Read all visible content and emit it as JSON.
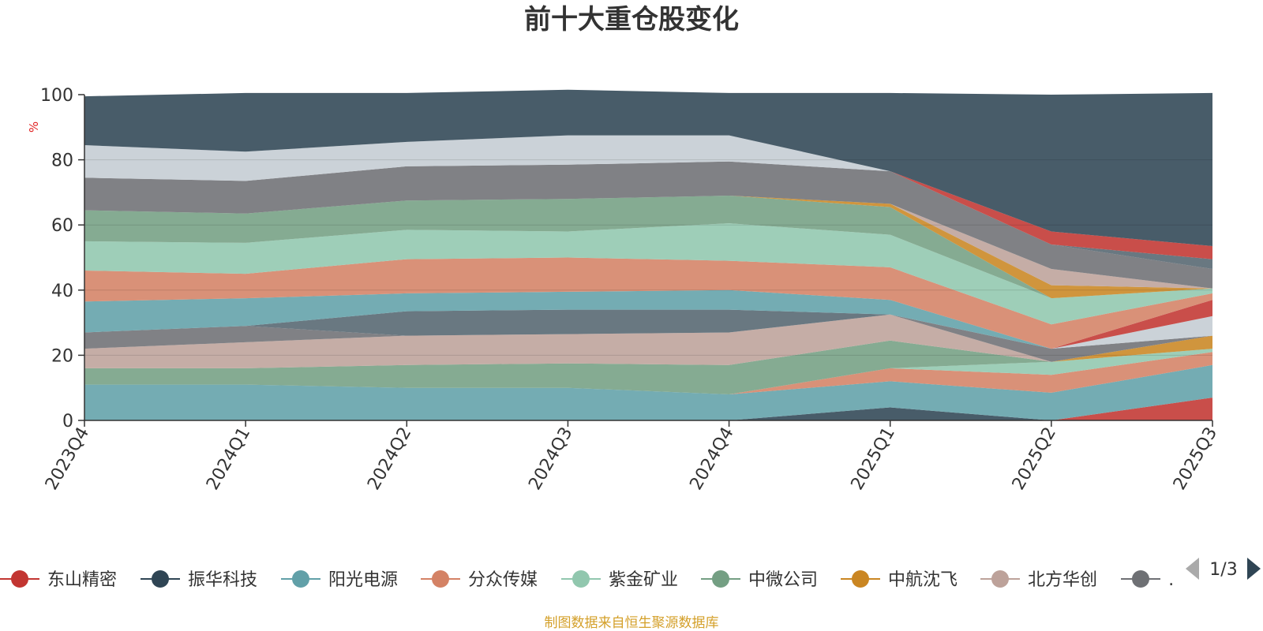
{
  "chart_data": {
    "type": "area",
    "stacked": true,
    "title": "前十大重仓股变化",
    "ylabel": "%",
    "ylim": [
      0,
      100
    ],
    "yticks": [
      0,
      20,
      40,
      60,
      80,
      100
    ],
    "grid": true,
    "categories": [
      "2023Q4",
      "2024Q1",
      "2024Q2",
      "2024Q3",
      "2024Q4",
      "2025Q1",
      "2025Q2",
      "2025Q3"
    ],
    "legend_position": "bottom",
    "legend": {
      "visible": [
        "东山精密",
        "振华科技",
        "阳光电源",
        "分众传媒",
        "紫金矿业",
        "中微公司",
        "中航沈飞",
        "北方华创",
        "…"
      ],
      "page": "1/3"
    },
    "series": [
      {
        "name": "东山精密",
        "color": "#c23531",
        "values": [
          0,
          0,
          0,
          0,
          0,
          0,
          0,
          7
        ]
      },
      {
        "name": "振华科技",
        "color": "#2f4554",
        "values": [
          0,
          0,
          0,
          0,
          0,
          4,
          0,
          0
        ]
      },
      {
        "name": "阳光电源",
        "color": "#61a0a8",
        "values": [
          11,
          11,
          10,
          10,
          8,
          8,
          8.5,
          10
        ]
      },
      {
        "name": "分众传媒",
        "color": "#d48265",
        "values": [
          0,
          0,
          0,
          0,
          0,
          4,
          5.5,
          4
        ]
      },
      {
        "name": "紫金矿业",
        "color": "#91c7ae",
        "values": [
          0,
          0,
          0,
          0,
          0,
          0,
          4,
          1
        ]
      },
      {
        "name": "中微公司",
        "color": "#749f83",
        "values": [
          5,
          5,
          7,
          7.5,
          9,
          8.5,
          0,
          0
        ]
      },
      {
        "name": "中航沈飞",
        "color": "#ca8622",
        "values": [
          0,
          0,
          0,
          0,
          0,
          0,
          0,
          4
        ]
      },
      {
        "name": "北方华创",
        "color": "#bda29a",
        "values": [
          6,
          8,
          9,
          9,
          10,
          8,
          0,
          0
        ]
      },
      {
        "name": "",
        "color": "#6e7074",
        "values": [
          5,
          5,
          0,
          0,
          0,
          0,
          4,
          0
        ]
      },
      {
        "name": "",
        "color": "#546570",
        "values": [
          0,
          0,
          7.5,
          7.5,
          7,
          0,
          0,
          0
        ]
      },
      {
        "name": "",
        "color": "#c4ccd3",
        "values": [
          0,
          0,
          0,
          0,
          0,
          0,
          0,
          6
        ]
      },
      {
        "name": "",
        "color": "#c23531",
        "values": [
          0,
          0,
          0,
          0,
          0,
          0,
          0,
          5
        ]
      },
      {
        "name": "",
        "color": "#61a0a8",
        "values": [
          9.5,
          8.5,
          5.5,
          5.5,
          6,
          4.5,
          0,
          0
        ]
      },
      {
        "name": "",
        "color": "#d48265",
        "values": [
          9.5,
          7.5,
          10.5,
          10.5,
          9,
          10,
          7.5,
          2
        ]
      },
      {
        "name": "",
        "color": "#91c7ae",
        "values": [
          9,
          9.5,
          9,
          8,
          11.5,
          10,
          8,
          1.5
        ]
      },
      {
        "name": "",
        "color": "#749f83",
        "values": [
          9.5,
          9,
          9,
          10,
          8.5,
          8.5,
          0,
          0
        ]
      },
      {
        "name": "",
        "color": "#ca8622",
        "values": [
          0,
          0,
          0,
          0,
          0,
          1,
          4,
          0
        ]
      },
      {
        "name": "",
        "color": "#bda29a",
        "values": [
          0,
          0,
          0,
          0,
          0,
          0,
          5,
          0
        ]
      },
      {
        "name": "",
        "color": "#6e7074",
        "values": [
          10,
          10,
          10.5,
          10.5,
          10.5,
          10,
          7.5,
          6
        ]
      },
      {
        "name": "",
        "color": "#546570",
        "values": [
          0,
          0,
          0,
          0,
          0,
          0,
          0,
          3
        ]
      },
      {
        "name": "",
        "color": "#c4ccd3",
        "values": [
          10,
          9,
          7.5,
          9,
          8,
          0,
          0,
          0
        ]
      },
      {
        "name": "",
        "color": "#c23531",
        "values": [
          0,
          0,
          0,
          0,
          0,
          0,
          4,
          4
        ]
      },
      {
        "name": "",
        "color": "#2f4554",
        "values": [
          15,
          18,
          15,
          14,
          13,
          24,
          42,
          47
        ]
      }
    ]
  },
  "footer": {
    "source": "制图数据来自恒生聚源数据库"
  }
}
